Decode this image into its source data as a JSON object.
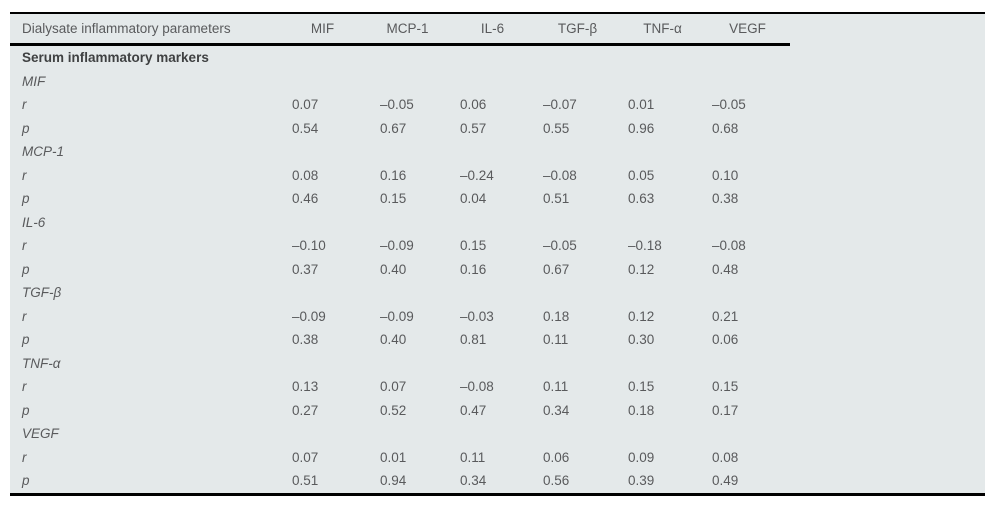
{
  "table": {
    "header_label": "Dialysate inflammatory parameters",
    "columns": [
      "MIF",
      "MCP-1",
      "IL-6",
      "TGF-β",
      "TNF-α",
      "VEGF"
    ],
    "section_label": "Serum inflammatory markers",
    "r_label": "r",
    "p_label": "p",
    "groups": [
      {
        "name": "MIF",
        "r": [
          "0.07",
          "–0.05",
          "0.06",
          "–0.07",
          "0.01",
          "–0.05"
        ],
        "p": [
          "0.54",
          "0.67",
          "0.57",
          "0.55",
          "0.96",
          "0.68"
        ]
      },
      {
        "name": "MCP-1",
        "r": [
          "0.08",
          "0.16",
          "–0.24",
          "–0.08",
          "0.05",
          "0.10"
        ],
        "p": [
          "0.46",
          "0.15",
          "0.04",
          "0.51",
          "0.63",
          "0.38"
        ]
      },
      {
        "name": "IL-6",
        "r": [
          "–0.10",
          "–0.09",
          "0.15",
          "–0.05",
          "–0.18",
          "–0.08"
        ],
        "p": [
          "0.37",
          "0.40",
          "0.16",
          "0.67",
          "0.12",
          "0.48"
        ]
      },
      {
        "name": "TGF-β",
        "r": [
          "–0.09",
          "–0.09",
          "–0.03",
          "0.18",
          "0.12",
          "0.21"
        ],
        "p": [
          "0.38",
          "0.40",
          "0.81",
          "0.11",
          "0.30",
          "0.06"
        ]
      },
      {
        "name": "TNF-α",
        "r": [
          "0.13",
          "0.07",
          "–0.08",
          "0.11",
          "0.15",
          "0.15"
        ],
        "p": [
          "0.27",
          "0.52",
          "0.47",
          "0.34",
          "0.18",
          "0.17"
        ]
      },
      {
        "name": "VEGF",
        "r": [
          "0.07",
          "0.01",
          "0.11",
          "0.06",
          "0.09",
          "0.08"
        ],
        "p": [
          "0.51",
          "0.94",
          "0.34",
          "0.56",
          "0.39",
          "0.49"
        ]
      }
    ],
    "colors": {
      "background": "#e4e9ea",
      "text": "#595a5c",
      "section_text": "#3f4142",
      "rule": "#000000"
    }
  }
}
